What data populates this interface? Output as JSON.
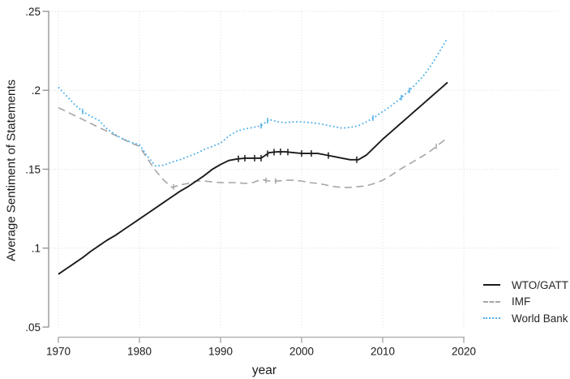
{
  "chart_data": {
    "type": "line",
    "title": "",
    "xlabel": "year",
    "ylabel": "Average Sentiment of Statements",
    "xlim": [
      1969,
      2021.5
    ],
    "ylim": [
      0.05,
      0.25
    ],
    "xticks": [
      1970,
      1980,
      1990,
      2000,
      2010,
      2020
    ],
    "yticks": [
      {
        "label": ".05",
        "value": 0.05
      },
      {
        "label": ".1",
        "value": 0.1
      },
      {
        "label": ".15",
        "value": 0.15
      },
      {
        "label": ".2",
        "value": 0.2
      },
      {
        "label": ".25",
        "value": 0.25
      }
    ],
    "grid": "dotted",
    "legend_position": "bottom-right-outside",
    "x": [
      1970,
      1971,
      1972,
      1973,
      1974,
      1975,
      1976,
      1977,
      1978,
      1979,
      1980,
      1981,
      1982,
      1983,
      1984,
      1985,
      1986,
      1987,
      1988,
      1989,
      1990,
      1991,
      1992,
      1993,
      1994,
      1995,
      1996,
      1997,
      1998,
      1999,
      2000,
      2001,
      2002,
      2003,
      2004,
      2005,
      2006,
      2007,
      2008,
      2009,
      2010,
      2011,
      2012,
      2013,
      2014,
      2015,
      2016,
      2017,
      2018
    ],
    "series": [
      {
        "name": "WTO/GATT",
        "color": "#1a1a1a",
        "style": "solid",
        "values": [
          0.0835,
          0.087,
          0.0905,
          0.094,
          0.098,
          0.1015,
          0.105,
          0.108,
          0.1115,
          0.115,
          0.1185,
          0.122,
          0.1255,
          0.129,
          0.1325,
          0.136,
          0.139,
          0.1425,
          0.146,
          0.15,
          0.153,
          0.1555,
          0.1565,
          0.157,
          0.157,
          0.157,
          0.1605,
          0.161,
          0.161,
          0.1605,
          0.16,
          0.16,
          0.16,
          0.159,
          0.158,
          0.157,
          0.156,
          0.156,
          0.159,
          0.164,
          0.169,
          0.1735,
          0.178,
          0.1825,
          0.187,
          0.1915,
          0.196,
          0.2005,
          0.205
        ]
      },
      {
        "name": "IMF",
        "color": "#a6a6a6",
        "style": "dashed",
        "values": [
          0.189,
          0.1865,
          0.184,
          0.1815,
          0.179,
          0.1765,
          0.174,
          0.1715,
          0.169,
          0.1665,
          0.1645,
          0.1565,
          0.149,
          0.143,
          0.1385,
          0.14,
          0.141,
          0.1425,
          0.1425,
          0.142,
          0.1415,
          0.1415,
          0.1415,
          0.141,
          0.1415,
          0.1435,
          0.1425,
          0.1425,
          0.143,
          0.143,
          0.1425,
          0.1415,
          0.141,
          0.14,
          0.139,
          0.1385,
          0.1385,
          0.139,
          0.1395,
          0.141,
          0.143,
          0.146,
          0.1495,
          0.1525,
          0.1555,
          0.1585,
          0.162,
          0.166,
          0.17
        ]
      },
      {
        "name": "World Bank",
        "color": "#4dafe8",
        "style": "dotted",
        "values": [
          0.202,
          0.1965,
          0.191,
          0.1865,
          0.1835,
          0.181,
          0.1755,
          0.172,
          0.169,
          0.167,
          0.1655,
          0.158,
          0.152,
          0.1525,
          0.1545,
          0.156,
          0.158,
          0.16,
          0.1625,
          0.1645,
          0.1665,
          0.171,
          0.174,
          0.1755,
          0.1765,
          0.1775,
          0.1815,
          0.18,
          0.1795,
          0.18,
          0.18,
          0.1795,
          0.179,
          0.178,
          0.177,
          0.176,
          0.1765,
          0.1775,
          0.18,
          0.183,
          0.1865,
          0.19,
          0.194,
          0.1985,
          0.2035,
          0.209,
          0.216,
          0.2245,
          0.233
        ]
      }
    ],
    "tick_marks": {
      "WTO/GATT": [
        1992.2,
        1993,
        1994.2,
        1995,
        1995.8,
        1996.6,
        1997.4,
        1998.3,
        2000,
        2001.2,
        2003.3,
        2006.8
      ],
      "IMF": [
        1984.2,
        1995.6,
        1996.8,
        2016.6
      ],
      "World Bank": [
        1973,
        1995,
        1995.8,
        2008.8,
        2012.3,
        2013.3
      ]
    }
  },
  "colors": {
    "wto_gatt_line": "#1a1a1a",
    "imf_line": "#a6a6a6",
    "world_bank_line": "#4dafe8",
    "gridline": "#d7d7d7",
    "y_axis": "#8f8f8f",
    "x_axis": "#b3b3b3",
    "text": "#1a1a1a"
  }
}
